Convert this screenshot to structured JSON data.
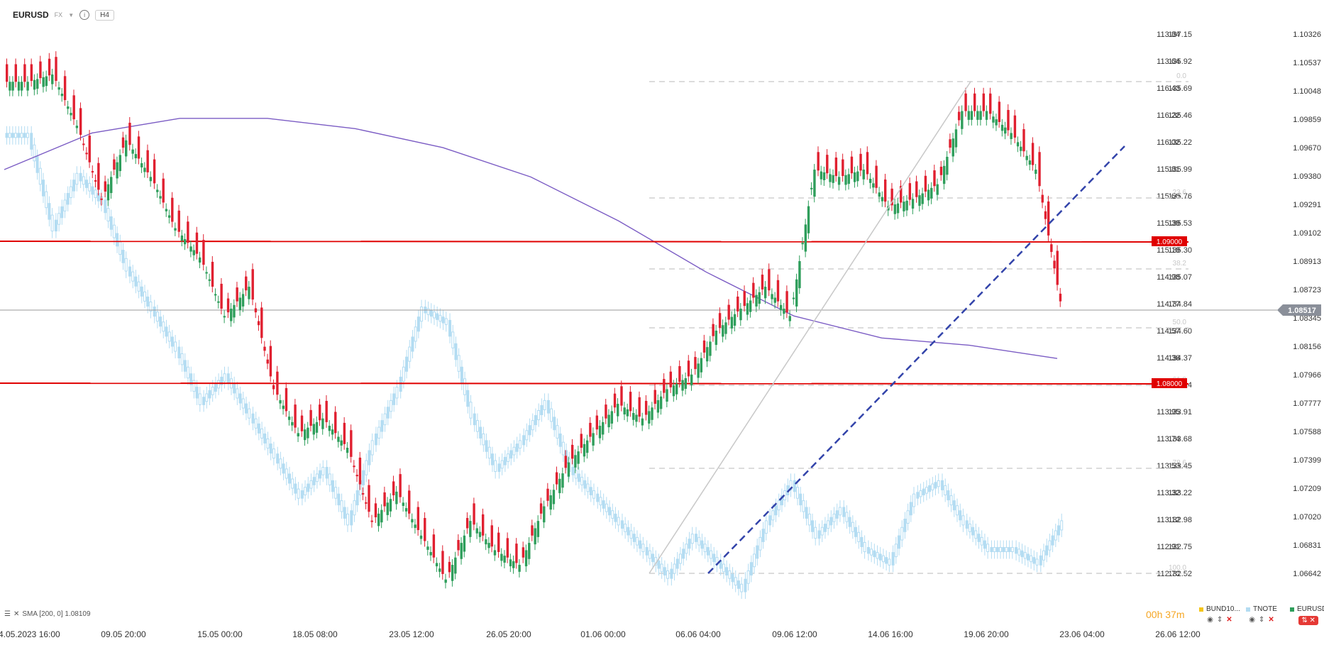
{
  "header": {
    "symbol": "EURUSD",
    "market": "FX",
    "timeframe": "H4"
  },
  "indicator_label": "SMA [200, 0] 1.08109",
  "timer": {
    "hours": "00h",
    "minutes": "37m"
  },
  "legend": [
    {
      "name": "BUND10...",
      "color": "#f5c518"
    },
    {
      "name": "TNOTE",
      "color": "#b3dcf2"
    },
    {
      "name": "EURUSD",
      "color": "#2e9e5b"
    }
  ],
  "chart_data": {
    "type": "candlestick",
    "primary_series": "EURUSD",
    "x_labels": [
      "04.05.2023 16:00",
      "09.05 20:00",
      "15.05 00:00",
      "18.05 08:00",
      "23.05 12:00",
      "26.05 20:00",
      "01.06 00:00",
      "06.06 04:00",
      "09.06 12:00",
      "14.06 16:00",
      "19.06 20:00",
      "23.06 04:00",
      "26.06 12:00"
    ],
    "y_axis_eurusd": [
      "1.10326",
      "1.10537",
      "1.10048",
      "1.09859",
      "1.09670",
      "1.09380",
      "1.09291",
      "1.09102",
      "1.08913",
      "1.08723",
      "1.08345",
      "1.08156",
      "1.07966",
      "1.07777",
      "1.07588",
      "1.07399",
      "1.07209",
      "1.07020",
      "1.06831",
      "1.06642"
    ],
    "y_axis_tnote": [
      "113.84",
      "113.64",
      "116.43",
      "116.22",
      "116.02",
      "115.81",
      "115.60",
      "115.39",
      "115.19",
      "114.98",
      "114.77",
      "114.57",
      "114.36",
      "114.15",
      "113.95",
      "113.74",
      "113.53",
      "113.32",
      "113.12",
      "112.91",
      "112.70"
    ],
    "y_axis_bund": [
      "137.15",
      "135.92",
      "135.69",
      "135.46",
      "135.22",
      "135.99",
      "135.76",
      "135.53",
      "135.30",
      "135.07",
      "134.84",
      "134.60",
      "134.37",
      "134.14",
      "133.91",
      "133.68",
      "133.45",
      "133.22",
      "132.98",
      "132.75",
      "132.52"
    ],
    "current_price": "1.08517",
    "horizontal_levels": [
      {
        "label": "1.09000",
        "color": "#e00000"
      },
      {
        "label": "1.08000",
        "color": "#e00000"
      }
    ],
    "fibonacci_levels": [
      "0.0",
      "23.6",
      "38.2",
      "50.0",
      "61.8",
      "78.6",
      "100.0"
    ],
    "sma_period": 200,
    "sma_value": 1.08109,
    "eurusd_closes": [
      1.1,
      1.1005,
      1.097,
      1.092,
      1.096,
      1.0935,
      1.09,
      1.088,
      1.084,
      1.086,
      1.079,
      1.076,
      1.077,
      1.075,
      1.07,
      1.072,
      1.069,
      1.066,
      1.07,
      1.068,
      1.067,
      1.071,
      1.074,
      1.076,
      1.078,
      1.077,
      1.079,
      1.08,
      1.083,
      1.0845,
      1.086,
      1.084,
      1.094,
      1.0935,
      1.094,
      1.0915,
      1.092,
      1.093,
      1.098,
      1.098,
      1.0965,
      1.094,
      1.085
    ],
    "tnote_closes": [
      115.9,
      115.2,
      115.6,
      115.4,
      114.9,
      114.6,
      114.3,
      113.9,
      114.1,
      113.8,
      113.5,
      113.2,
      113.4,
      113.0,
      113.6,
      114.0,
      114.6,
      114.5,
      113.8,
      113.4,
      113.6,
      113.9,
      113.4,
      113.2,
      113.0,
      112.8,
      112.6,
      112.9,
      112.7,
      112.5,
      113.0,
      113.3,
      112.9,
      113.1,
      112.8,
      112.7,
      113.2,
      113.3,
      113.0,
      112.8,
      112.8,
      112.7,
      113.0
    ],
    "sma_path": [
      1.094,
      1.0965,
      1.0975,
      1.0975,
      1.0968,
      1.0955,
      1.0935,
      1.0905,
      1.087,
      1.084,
      1.0825,
      1.082,
      1.0811
    ]
  }
}
